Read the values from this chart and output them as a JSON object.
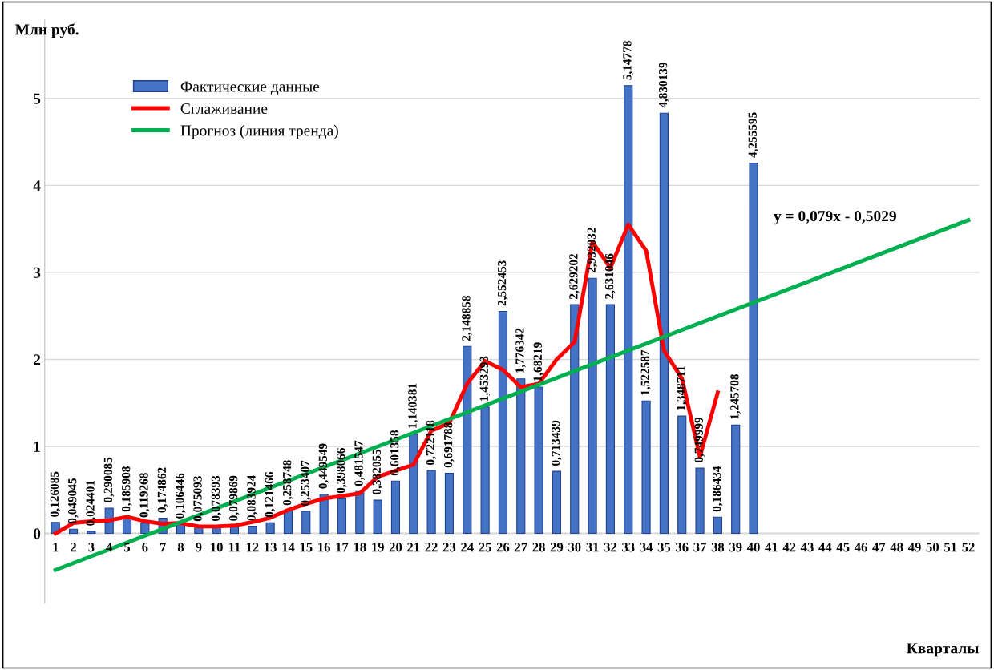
{
  "chart_data": {
    "type": "bar",
    "ylabel": "Млн руб.",
    "xlabel": "Кварталы",
    "categories": [
      "1",
      "2",
      "3",
      "4",
      "5",
      "6",
      "7",
      "8",
      "9",
      "10",
      "11",
      "12",
      "13",
      "14",
      "15",
      "16",
      "17",
      "18",
      "19",
      "20",
      "21",
      "22",
      "23",
      "24",
      "25",
      "26",
      "27",
      "28",
      "29",
      "30",
      "31",
      "32",
      "33",
      "34",
      "35",
      "36",
      "37",
      "38",
      "39",
      "40",
      "41",
      "42",
      "43",
      "44",
      "45",
      "46",
      "47",
      "48",
      "49",
      "50",
      "51",
      "52"
    ],
    "ylim": [
      -0.8,
      5.9
    ],
    "yticks": [
      0,
      1,
      2,
      3,
      4,
      5
    ],
    "grid": "y",
    "legend": "top left",
    "series": [
      {
        "name": "Фактические данные",
        "color": "#4472c4",
        "values": [
          0.126085,
          0.049045,
          0.024401,
          0.290085,
          0.185908,
          0.119268,
          0.174862,
          0.106446,
          0.075093,
          0.078393,
          0.079869,
          0.083924,
          0.121466,
          0.258748,
          0.253407,
          0.449549,
          0.398066,
          0.481547,
          0.382055,
          0.601358,
          1.140381,
          0.722118,
          0.691788,
          2.148858,
          1.453293,
          2.552453,
          1.776342,
          1.68219,
          0.713439,
          2.629202,
          2.932032,
          2.631046,
          5.14778,
          1.522587,
          4.830139,
          1.348711,
          0.749999,
          0.186434,
          1.245708,
          4.255595,
          null,
          null,
          null,
          null,
          null,
          null,
          null,
          null,
          null,
          null,
          null,
          null
        ],
        "value_labels": [
          "0,126085",
          "0,049045",
          "0,024401",
          "0,290085",
          "0,185908",
          "0,119268",
          "0,174862",
          "0,106446",
          "0,075093",
          "0,078393",
          "0,079869",
          "0,083924",
          "0,121466",
          "0,258748",
          "0,253407",
          "0,449549",
          "0,398066",
          "0,481547",
          "0,382055",
          "0,601358",
          "1,140381",
          "0,722118",
          "0,691788",
          "2,148858",
          "1,453293",
          "2,552453",
          "1,776342",
          "1,68219",
          "0,713439",
          "2,629202",
          "2,932032",
          "2,631046",
          "5,14778",
          "1,522587",
          "4,830139",
          "1,348711",
          "0,749999",
          "0,186434",
          "1,245708",
          "4,255595",
          null,
          null,
          null,
          null,
          null,
          null,
          null,
          null,
          null,
          null,
          null,
          null
        ]
      },
      {
        "name": "Сглаживание",
        "type": "line",
        "color": "#ff0000",
        "values": [
          0.0,
          0.12,
          0.14,
          0.15,
          0.19,
          0.14,
          0.11,
          0.12,
          0.08,
          0.08,
          0.09,
          0.13,
          0.18,
          0.27,
          0.34,
          0.4,
          0.43,
          0.46,
          0.65,
          0.72,
          0.79,
          1.18,
          1.27,
          1.72,
          1.98,
          1.88,
          1.68,
          1.72,
          2.0,
          2.2,
          3.35,
          3.05,
          3.55,
          3.25,
          2.1,
          1.78,
          0.88,
          1.62,
          null,
          null,
          null,
          null,
          null,
          null,
          null,
          null,
          null,
          null,
          null,
          null,
          null,
          null
        ]
      },
      {
        "name": "Прогноз (линия тренда)",
        "type": "line",
        "color": "#00b050",
        "x": [
          "1",
          "52"
        ],
        "values": [
          -0.42,
          3.6
        ]
      }
    ],
    "annotations": [
      "y = 0,079x - 0,5029"
    ]
  }
}
